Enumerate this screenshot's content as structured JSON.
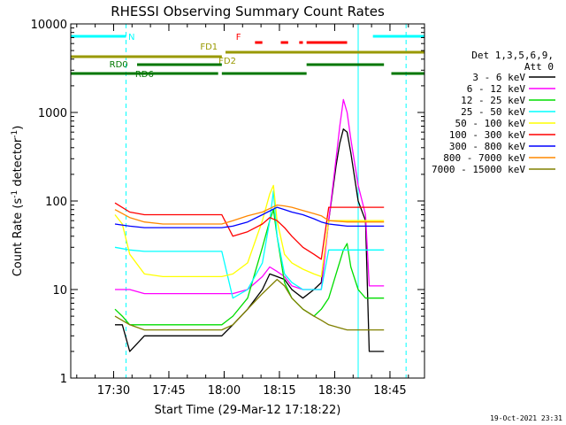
{
  "chart_data": {
    "type": "line",
    "title": "RHESSI Observing Summary Count Rates",
    "xlabel": "Start Time (29-Mar-12 17:18:22)",
    "ylabel_main": "Count Rate (s",
    "ylabel_sup1": "-1",
    "ylabel_mid": " detector",
    "ylabel_sup2": "-1",
    "ylabel_end": ")",
    "x_unit": "minutes after 17:18:22",
    "xlim": [
      0,
      96
    ],
    "ylim": [
      1,
      10000
    ],
    "y_scale": "log",
    "x_ticks": [
      {
        "value": 11.63,
        "label": "17:30"
      },
      {
        "value": 26.63,
        "label": "17:45"
      },
      {
        "value": 41.63,
        "label": "18:00"
      },
      {
        "value": 56.63,
        "label": "18:15"
      },
      {
        "value": 71.63,
        "label": "18:30"
      },
      {
        "value": 86.63,
        "label": "18:45"
      }
    ],
    "y_ticks": [
      {
        "value": 1,
        "label": "1"
      },
      {
        "value": 10,
        "label": "10"
      },
      {
        "value": 100,
        "label": "100"
      },
      {
        "value": 1000,
        "label": "1000"
      },
      {
        "value": 10000,
        "label": "10000"
      }
    ],
    "legend_title": [
      "Det 1,3,5,6,9,",
      "Att 0"
    ],
    "legend_position": "right",
    "series": [
      {
        "name": "3 - 6 keV",
        "color": "#000000",
        "x": [
          12,
          14,
          16,
          20,
          25,
          30,
          35,
          41,
          44,
          48,
          52,
          54,
          56,
          58,
          60,
          63,
          66,
          68,
          70,
          72,
          73,
          74,
          75,
          76,
          78,
          80,
          81,
          85
        ],
        "y": [
          4,
          4,
          2,
          3,
          3,
          3,
          3,
          3,
          4,
          6,
          10,
          15,
          14,
          13,
          10,
          8,
          10,
          12,
          60,
          250,
          450,
          650,
          600,
          350,
          100,
          60,
          2,
          2
        ]
      },
      {
        "name": "6 - 12 keV",
        "color": "#ff00ff",
        "x": [
          12,
          16,
          20,
          25,
          30,
          35,
          41,
          44,
          48,
          52,
          54,
          56,
          58,
          60,
          63,
          66,
          68,
          70,
          72,
          73,
          74,
          75,
          76,
          78,
          80,
          81,
          85
        ],
        "y": [
          10,
          10,
          9,
          9,
          9,
          9,
          9,
          9,
          10,
          14,
          18,
          16,
          14,
          11,
          10,
          10,
          10,
          60,
          300,
          700,
          1400,
          1000,
          500,
          150,
          70,
          11,
          11
        ]
      },
      {
        "name": "12 - 25 keV",
        "color": "#00dd00",
        "x": [
          12,
          14,
          16,
          20,
          25,
          30,
          35,
          41,
          44,
          48,
          52,
          54,
          55,
          56,
          58,
          60,
          63,
          66,
          68,
          70,
          72,
          74,
          75,
          76,
          78,
          80,
          81,
          85
        ],
        "y": [
          6,
          5,
          4,
          4,
          4,
          4,
          4,
          4,
          5,
          8,
          30,
          60,
          80,
          40,
          12,
          8,
          6,
          5,
          6,
          8,
          15,
          28,
          33,
          18,
          10,
          8,
          8,
          8
        ]
      },
      {
        "name": "25 - 50 keV",
        "color": "#00ffff",
        "x": [
          12,
          16,
          20,
          25,
          30,
          35,
          41,
          44,
          48,
          52,
          54,
          55,
          56,
          58,
          60,
          63,
          66,
          68,
          70,
          72,
          75,
          78,
          80,
          81,
          85
        ],
        "y": [
          30,
          28,
          27,
          27,
          27,
          27,
          27,
          8,
          10,
          20,
          60,
          130,
          40,
          15,
          12,
          10,
          10,
          10,
          28,
          28,
          28,
          28,
          28,
          28,
          28
        ]
      },
      {
        "name": "50 - 100 keV",
        "color": "#ffff00",
        "x": [
          12,
          14,
          16,
          20,
          25,
          30,
          35,
          41,
          44,
          48,
          52,
          54,
          55,
          56,
          58,
          60,
          63,
          66,
          68,
          70,
          75,
          80,
          85
        ],
        "y": [
          70,
          55,
          25,
          15,
          14,
          14,
          14,
          14,
          15,
          20,
          60,
          120,
          150,
          60,
          25,
          20,
          17,
          15,
          14,
          60,
          60,
          60,
          60
        ]
      },
      {
        "name": "100 - 300 keV",
        "color": "#ff0000",
        "x": [
          12,
          16,
          20,
          25,
          30,
          35,
          41,
          44,
          48,
          52,
          54,
          56,
          58,
          60,
          63,
          66,
          68,
          70,
          75,
          80,
          85
        ],
        "y": [
          95,
          75,
          70,
          70,
          70,
          70,
          70,
          40,
          45,
          55,
          65,
          60,
          50,
          40,
          30,
          25,
          22,
          85,
          85,
          85,
          85
        ]
      },
      {
        "name": "300 - 800 keV",
        "color": "#0000ff",
        "x": [
          12,
          16,
          20,
          25,
          30,
          35,
          41,
          44,
          48,
          52,
          56,
          58,
          60,
          63,
          66,
          68,
          70,
          75,
          80,
          85
        ],
        "y": [
          55,
          52,
          50,
          50,
          50,
          50,
          50,
          52,
          58,
          70,
          85,
          80,
          75,
          70,
          63,
          58,
          55,
          52,
          52,
          52
        ]
      },
      {
        "name": "800 - 7000 keV",
        "color": "#ff8800",
        "x": [
          12,
          16,
          20,
          25,
          30,
          35,
          41,
          44,
          48,
          52,
          56,
          58,
          60,
          63,
          66,
          68,
          70,
          75,
          80,
          85
        ],
        "y": [
          80,
          65,
          58,
          55,
          55,
          55,
          55,
          60,
          68,
          75,
          90,
          88,
          85,
          78,
          72,
          68,
          60,
          58,
          58,
          58
        ]
      },
      {
        "name": "7000 - 15000 keV",
        "color": "#808000",
        "x": [
          12,
          16,
          20,
          25,
          30,
          35,
          41,
          44,
          48,
          52,
          56,
          58,
          60,
          63,
          66,
          68,
          70,
          75,
          80,
          85
        ],
        "y": [
          5,
          4,
          3.5,
          3.5,
          3.5,
          3.5,
          3.5,
          4,
          6,
          9,
          13,
          11,
          8,
          6,
          5,
          4.5,
          4,
          3.5,
          3.5,
          3.5
        ]
      }
    ],
    "flags": [
      {
        "label": "N",
        "color": "#00ffff",
        "label_x": 16.5,
        "segments": [
          [
            0,
            15
          ],
          [
            82,
            96
          ]
        ]
      },
      {
        "label": "F",
        "color": "#ff0000",
        "label_x": 45.5,
        "segments": [
          [
            50,
            52
          ],
          [
            57,
            59
          ],
          [
            62,
            63
          ],
          [
            64,
            75
          ]
        ]
      },
      {
        "label": "FD1",
        "color": "#999900",
        "label_x": 37.5,
        "segments": [
          [
            42,
            96
          ]
        ]
      },
      {
        "label": "FD2",
        "color": "#999900",
        "label_x": 42.5,
        "segments": [
          [
            -5,
            41
          ]
        ]
      },
      {
        "label": "RD0",
        "color": "#007700",
        "label_x": 13,
        "segments": [
          [
            18,
            41
          ],
          [
            64,
            85
          ]
        ]
      },
      {
        "label": "RD6",
        "color": "#007700",
        "label_x": 20,
        "segments": [
          [
            -5,
            40
          ],
          [
            41,
            64
          ],
          [
            87,
            96
          ]
        ]
      }
    ],
    "vlines": [
      {
        "x": 15,
        "style": "dashed",
        "color": "#00ffff"
      },
      {
        "x": 78,
        "style": "solid",
        "color": "#00ffff"
      },
      {
        "x": 91,
        "style": "dashed",
        "color": "#00ffff"
      }
    ]
  },
  "footer": {
    "timestamp": "19-Oct-2021 23:31"
  }
}
